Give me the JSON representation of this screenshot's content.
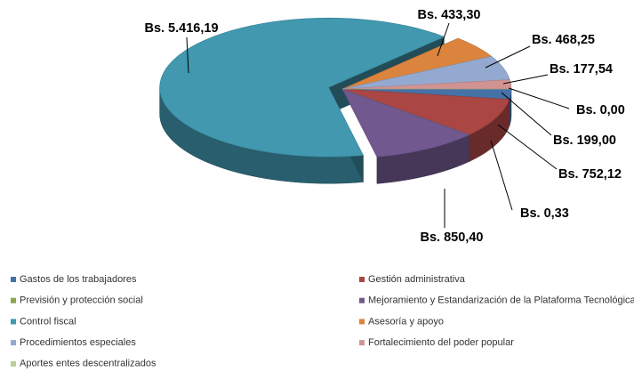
{
  "chart_data": {
    "type": "pie",
    "categories": [
      "Gastos de los trabajadores",
      "Gestión administrativa",
      "Previsión y protección social",
      "Mejoramiento y Estandarización de la Plataforma Tecnológica",
      "Control fiscal",
      "Asesoría y apoyo",
      "Procedimientos especiales",
      "Fortalecimiento del poder popular",
      "Aportes entes descentralizados"
    ],
    "values": [
      199.0,
      752.12,
      0.33,
      850.4,
      5416.19,
      433.3,
      468.25,
      177.54,
      0.0
    ],
    "value_labels": [
      "Bs. 199,00",
      "Bs. 752,12",
      "Bs. 0,33",
      "Bs. 850,40",
      "Bs. 5.416,19",
      "Bs. 433,30",
      "Bs. 468,25",
      "Bs. 177,54",
      "Bs. 0,00"
    ],
    "colors": [
      "#4572a7",
      "#aa4643",
      "#89a54e",
      "#71588f",
      "#4198af",
      "#db843d",
      "#93a9cf",
      "#d19392",
      "#b9cd96"
    ],
    "exploded": [
      4
    ]
  }
}
